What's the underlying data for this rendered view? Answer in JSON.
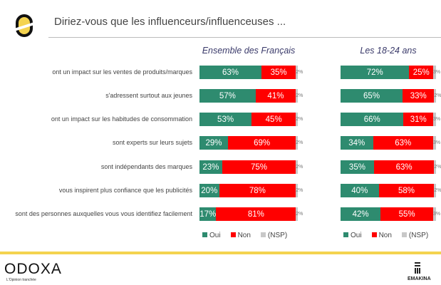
{
  "header": {
    "title": "Diriez-vous que les influenceurs/influenceuses ..."
  },
  "chart_data": {
    "type": "bar",
    "orientation": "horizontal",
    "stacked": true,
    "categories": [
      "ont un impact sur les ventes de produits/marques",
      "s'adressent surtout aux jeunes",
      "ont un impact sur les habitudes de consommation",
      "sont experts sur leurs sujets",
      "sont indépendants des marques",
      "vous inspirent plus confiance que les publicités",
      "sont des personnes auxquelles vous vous identifiez facilement"
    ],
    "legend": [
      "Oui",
      "Non",
      "(NSP)"
    ],
    "colors": {
      "Oui": "#2e8b6f",
      "Non": "#ff0000",
      "(NSP)": "#c8c8c8"
    },
    "panels": [
      {
        "title": "Ensemble des Français",
        "series": [
          {
            "name": "Oui",
            "values": [
              63,
              57,
              53,
              29,
              23,
              20,
              17
            ]
          },
          {
            "name": "Non",
            "values": [
              35,
              41,
              45,
              69,
              75,
              78,
              81
            ]
          },
          {
            "name": "(NSP)",
            "values": [
              2,
              2,
              2,
              2,
              2,
              2,
              2
            ]
          }
        ]
      },
      {
        "title": "Les 18-24 ans",
        "series": [
          {
            "name": "Oui",
            "values": [
              72,
              65,
              66,
              34,
              35,
              40,
              42
            ]
          },
          {
            "name": "Non",
            "values": [
              25,
              33,
              31,
              63,
              63,
              58,
              55
            ]
          },
          {
            "name": "(NSP)",
            "values": [
              3,
              2,
              3,
              3,
              2,
              2,
              3
            ]
          }
        ]
      }
    ],
    "legend_placement": "bottom"
  },
  "footer": {
    "brand": "ODOXA",
    "tagline": "L'Opinion tranchée",
    "partner": "EMAKINA"
  }
}
